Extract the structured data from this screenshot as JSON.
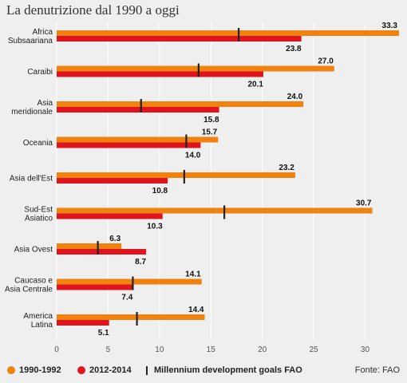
{
  "title": "La denutrizione dal 1990 a oggi",
  "source": "Fonte: FAO",
  "legend": {
    "series_1990": "1990-1992",
    "series_2012": "2012-2014",
    "goal": "Millennium development goals FAO"
  },
  "colors": {
    "series_1990": "#f0820f",
    "series_2012": "#e0141e",
    "goal": "#222222",
    "background": "#efefef",
    "grid": "#ffffff"
  },
  "chart_data": {
    "type": "bar",
    "orientation": "horizontal",
    "title": "La denutrizione dal 1990 a oggi",
    "categories": [
      [
        "Africa",
        "Subsaariana"
      ],
      [
        "Caraibi"
      ],
      [
        "Asia",
        "meridionale"
      ],
      [
        "Oceania"
      ],
      [
        "Asia dell'Est"
      ],
      [
        "Sud-Est",
        "Asiatico"
      ],
      [
        "Asia Ovest"
      ],
      [
        "Caucaso e",
        "Asia Centrale"
      ],
      [
        "America",
        "Latina"
      ]
    ],
    "series": [
      {
        "name": "1990-1992",
        "values": [
          33.3,
          27.0,
          24.0,
          15.7,
          23.2,
          30.7,
          6.3,
          14.1,
          14.4
        ],
        "labels": [
          "33.3",
          "27.0",
          "24.0",
          "15.7",
          "23.2",
          "30.7",
          "6.3",
          "14.1",
          "14.4"
        ]
      },
      {
        "name": "2012-2014",
        "values": [
          23.8,
          20.1,
          15.8,
          14.0,
          10.8,
          10.3,
          8.7,
          7.4,
          5.1
        ],
        "labels": [
          "23.8",
          "20.1",
          "15.8",
          "14.0",
          "10.8",
          "10.3",
          "8.7",
          "7.4",
          "5.1"
        ]
      }
    ],
    "goal_markers": {
      "name": "Millennium development goals FAO",
      "values": [
        17.7,
        13.8,
        8.2,
        12.6,
        12.4,
        16.3,
        4.0,
        7.4,
        7.8
      ]
    },
    "xlim": [
      0,
      33.3
    ],
    "xticks": [
      0,
      5,
      10,
      15,
      20,
      25,
      30
    ],
    "grid": true,
    "legend_position": "bottom"
  }
}
